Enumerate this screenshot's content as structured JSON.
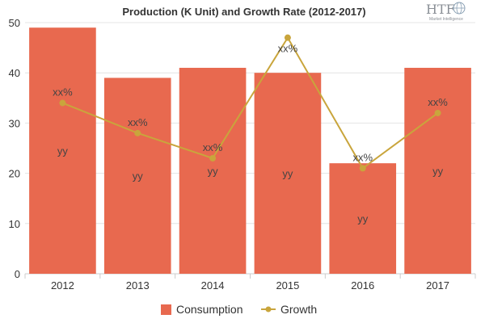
{
  "chart_data": {
    "type": "bar",
    "title": "Production (K Unit) and Growth Rate (2012-2017)",
    "categories": [
      "2012",
      "2013",
      "2014",
      "2015",
      "2016",
      "2017"
    ],
    "series": [
      {
        "name": "Consumption",
        "type": "bar",
        "values": [
          49,
          39,
          41,
          40,
          22,
          41
        ],
        "labels": [
          "yy",
          "yy",
          "yy",
          "yy",
          "yy",
          "yy"
        ],
        "color": "#e8694f"
      },
      {
        "name": "Growth",
        "type": "line",
        "values": [
          34,
          28,
          23,
          47,
          21,
          32
        ],
        "labels": [
          "xx%",
          "xx%",
          "xx%",
          "xx%",
          "xx%",
          "xx%"
        ],
        "color": "#c9a53c"
      }
    ],
    "xlabel": "",
    "ylabel": "",
    "ylim": [
      0,
      50
    ],
    "yticks": [
      0,
      10,
      20,
      30,
      40,
      50
    ],
    "grid": true,
    "legend_position": "bottom"
  },
  "logo": {
    "text": "HTF",
    "subtitle": "Market Intelligence"
  }
}
